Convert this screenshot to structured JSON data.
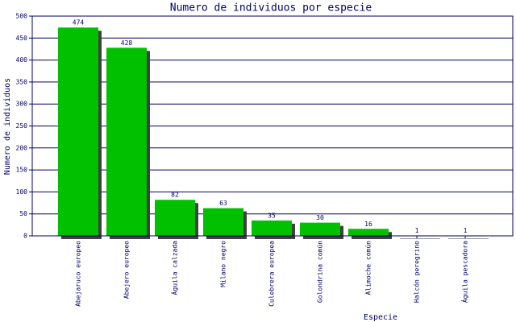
{
  "chart_data": {
    "type": "bar",
    "title": "Numero de individuos por especie",
    "x_label": "Especie",
    "y_label": "Numero de individuos",
    "categories": [
      "Abejaruco europeo",
      "Abejero europeo",
      "Águila calzada",
      "Milano negro",
      "Culebrera europea",
      "Golondrina común",
      "Alimoche común",
      "Halcón peregrino",
      "Águila pescadora"
    ],
    "values": [
      474,
      428,
      82,
      63,
      35,
      30,
      16,
      1,
      1
    ],
    "color": "#00c000",
    "ylim": [
      0,
      500
    ],
    "yticks": [
      0,
      50,
      100,
      150,
      200,
      250,
      300,
      350,
      400,
      450,
      500
    ],
    "grid": true
  }
}
